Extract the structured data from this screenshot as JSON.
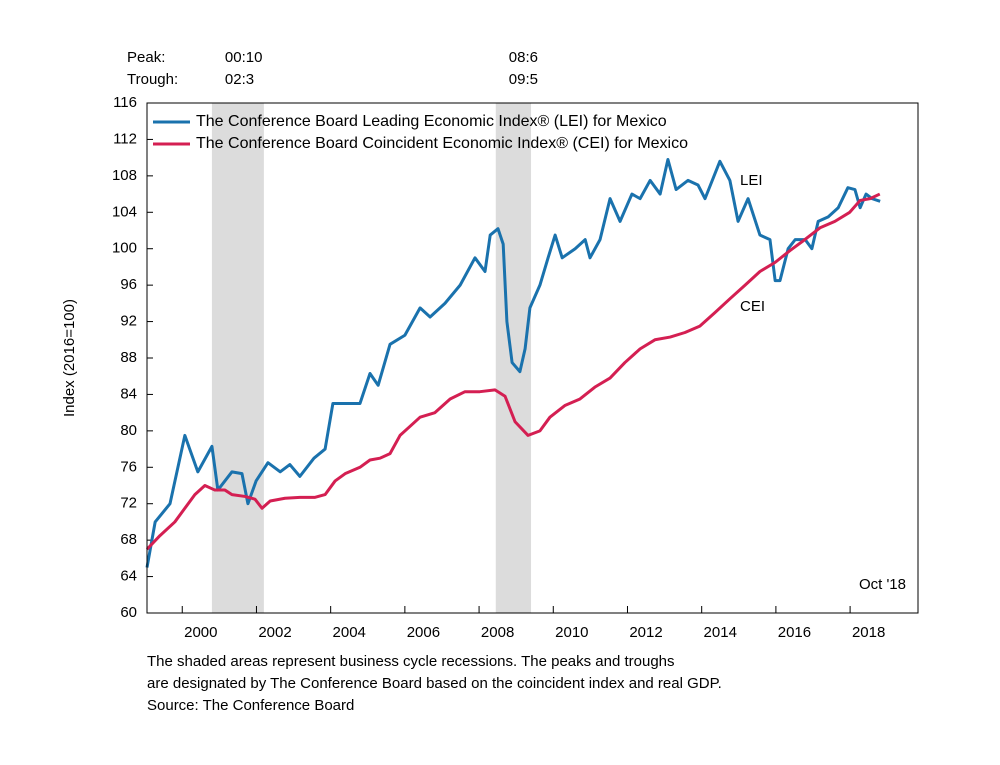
{
  "chart_data": {
    "type": "line",
    "y_axis_label": "Index (2016=100)",
    "peak_label": "Peak:",
    "trough_label": "Trough:",
    "recessions": [
      {
        "start": 2000.8,
        "end": 2002.2,
        "peak": "00:10",
        "trough": "02:3"
      },
      {
        "start": 2008.45,
        "end": 2009.4,
        "peak": "08:6",
        "trough": "09:5"
      }
    ],
    "recession_color": "#dcdcdc",
    "xlim": [
      1999.05,
      2019.83
    ],
    "xticks": [
      2000,
      2002,
      2004,
      2006,
      2008,
      2010,
      2012,
      2014,
      2016,
      2018
    ],
    "ylim": [
      60,
      116
    ],
    "yticks": [
      60,
      64,
      68,
      72,
      76,
      80,
      84,
      88,
      92,
      96,
      100,
      104,
      108,
      112,
      116
    ],
    "legend": "upper left",
    "date_note": "Oct '18",
    "footnote": [
      "The shaded areas represent business cycle recessions. The peaks and troughs",
      "are designated by The Conference Board based on the coincident index and real GDP.",
      "Source: The Conference Board"
    ],
    "series": [
      {
        "name": "The Conference Board Leading Economic Index® (LEI) for Mexico",
        "label": "LEI",
        "color": "#1a72ad",
        "x": [
          1999.05,
          1999.27,
          1999.67,
          2000.07,
          2000.42,
          2000.8,
          2000.96,
          2001.34,
          2001.61,
          2001.77,
          2001.99,
          2002.31,
          2002.64,
          2002.9,
          2003.17,
          2003.55,
          2003.85,
          2004.06,
          2004.47,
          2004.79,
          2005.06,
          2005.28,
          2005.6,
          2006.0,
          2006.41,
          2006.68,
          2007.08,
          2007.49,
          2007.89,
          2008.16,
          2008.3,
          2008.51,
          2008.65,
          2008.75,
          2008.89,
          2009.1,
          2009.24,
          2009.37,
          2009.64,
          2009.86,
          2010.05,
          2010.24,
          2010.59,
          2010.86,
          2010.99,
          2011.26,
          2011.53,
          2011.8,
          2012.12,
          2012.34,
          2012.61,
          2012.88,
          2013.09,
          2013.31,
          2013.63,
          2013.9,
          2014.09,
          2014.49,
          2014.76,
          2014.98,
          2015.25,
          2015.57,
          2015.84,
          2015.98,
          2016.11,
          2016.33,
          2016.52,
          2016.79,
          2016.97,
          2017.14,
          2017.41,
          2017.68,
          2017.94,
          2018.13,
          2018.27,
          2018.43,
          2018.59,
          2018.81
        ],
        "values": [
          65,
          70,
          72,
          79.5,
          75.5,
          78.3,
          73.5,
          75.5,
          75.3,
          72,
          74.5,
          76.5,
          75.5,
          76.3,
          75,
          77,
          78,
          83,
          83,
          83,
          86.3,
          85,
          89.5,
          90.5,
          93.5,
          92.5,
          94,
          96,
          99,
          97.5,
          101.5,
          102.2,
          100.5,
          92,
          87.5,
          86.5,
          89,
          93.5,
          96,
          99,
          101.5,
          99,
          100,
          101,
          99,
          101,
          105.5,
          103,
          106,
          105.5,
          107.5,
          106,
          109.8,
          106.5,
          107.5,
          107,
          105.5,
          109.6,
          107.5,
          103,
          105.5,
          101.5,
          101,
          96.5,
          96.5,
          100,
          101,
          101,
          100,
          103,
          103.5,
          104.5,
          106.7,
          106.5,
          104.5,
          106,
          105.5,
          105.2
        ]
      },
      {
        "name": "The Conference Board Coincident Economic Index® (CEI) for Mexico",
        "label": "CEI",
        "color": "#d41f52",
        "x": [
          1999.05,
          1999.4,
          1999.8,
          2000.07,
          2000.34,
          2000.61,
          2000.88,
          2001.15,
          2001.34,
          2001.69,
          2001.96,
          2002.15,
          2002.37,
          2002.77,
          2003.17,
          2003.58,
          2003.85,
          2004.12,
          2004.39,
          2004.79,
          2005.06,
          2005.33,
          2005.6,
          2005.87,
          2006.14,
          2006.41,
          2006.81,
          2007.22,
          2007.62,
          2008.02,
          2008.43,
          2008.7,
          2008.97,
          2009.32,
          2009.64,
          2009.91,
          2010.32,
          2010.72,
          2011.12,
          2011.53,
          2011.93,
          2012.34,
          2012.74,
          2013.15,
          2013.55,
          2013.95,
          2014.36,
          2014.76,
          2015.17,
          2015.57,
          2015.98,
          2016.38,
          2016.78,
          2017.19,
          2017.59,
          2017.99,
          2018.27,
          2018.54,
          2018.8
        ],
        "values": [
          67,
          68.5,
          70,
          71.5,
          73,
          74,
          73.5,
          73.5,
          73,
          72.8,
          72.5,
          71.5,
          72.3,
          72.6,
          72.7,
          72.7,
          73,
          74.5,
          75.3,
          76,
          76.8,
          77,
          77.5,
          79.5,
          80.5,
          81.5,
          82,
          83.5,
          84.3,
          84.3,
          84.5,
          83.8,
          81,
          79.5,
          80,
          81.5,
          82.8,
          83.5,
          84.8,
          85.8,
          87.5,
          89,
          90,
          90.3,
          90.8,
          91.5,
          93,
          94.5,
          96,
          97.5,
          98.5,
          99.8,
          101,
          102.3,
          103,
          104,
          105.3,
          105.5,
          106
        ]
      }
    ]
  }
}
